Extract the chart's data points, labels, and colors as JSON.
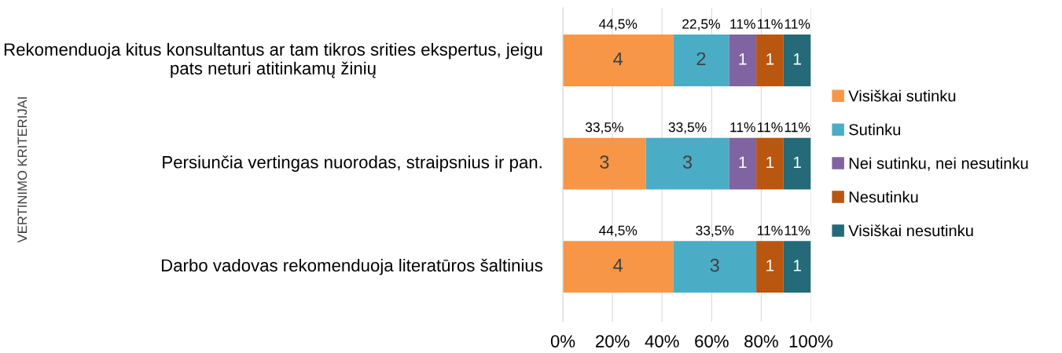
{
  "chart_data": {
    "type": "bar",
    "orientation": "horizontal",
    "stacked": true,
    "ylabel": "VERTINIMO KRITERIJAI",
    "categories": [
      "Rekomenduoja kitus konsultantus ar tam tikros srities ekspertus, jeigu pats neturi atitinkamų žinių",
      "Persiunčia vertingas nuorodas, straipsnius ir pan.",
      "Darbo vadovas rekomenduoja literatūros šaltinius"
    ],
    "series": [
      {
        "name": "Visiškai sutinku",
        "color": "#f79646",
        "values": [
          44.5,
          33.5,
          44.5
        ],
        "value_labels": [
          "44,5%",
          "33,5%",
          "44,5%"
        ]
      },
      {
        "name": "Sutinku",
        "color": "#4bacc6",
        "values": [
          22.5,
          33.5,
          33.5
        ],
        "value_labels": [
          "22,5%",
          "33,5%",
          "33,5%"
        ]
      },
      {
        "name": "Nei sutinku, nei nesutinku",
        "color": "#8064a2",
        "values": [
          11,
          11,
          null
        ],
        "value_labels": [
          "11%",
          "11%",
          null
        ]
      },
      {
        "name": "Nesutinku",
        "color": "#b9560f",
        "values": [
          11,
          11,
          11
        ],
        "value_labels": [
          "11%",
          "11%",
          "11%"
        ]
      },
      {
        "name": "Visiškai nesutinku",
        "color": "#246a78",
        "values": [
          11,
          11,
          11
        ],
        "value_labels": [
          "11%",
          "11%",
          "11%"
        ]
      }
    ],
    "xlim": [
      0,
      100
    ],
    "xticks": [
      {
        "value": 0,
        "label": "0%"
      },
      {
        "value": 20,
        "label": "20%"
      },
      {
        "value": 40,
        "label": "40%"
      },
      {
        "value": 60,
        "label": "60%"
      },
      {
        "value": 80,
        "label": "80%"
      },
      {
        "value": 100,
        "label": "100%"
      }
    ],
    "grid": "x",
    "legend": "right",
    "annotations": [
      "4",
      "2",
      "1",
      "1",
      "1",
      "3",
      "3",
      "1",
      "1",
      "1",
      "4",
      "3",
      "1",
      "1"
    ]
  }
}
